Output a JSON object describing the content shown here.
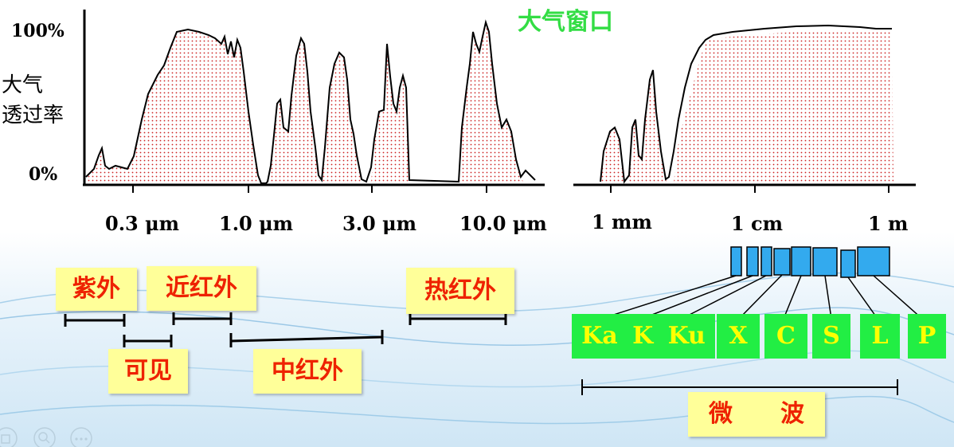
{
  "title": "大气窗口",
  "y_axis": {
    "label_line1": "大气",
    "label_line2": "透过率",
    "ticks": [
      "100%",
      "0%"
    ]
  },
  "x_axis_left": {
    "ticks": [
      "0.3 μm",
      "1.0 μm",
      "3.0 μm",
      "10.0 μm"
    ]
  },
  "x_axis_right": {
    "ticks": [
      "1 mm",
      "1 cm",
      "1 m"
    ]
  },
  "regions": {
    "uv": "紫外",
    "visible": "可见",
    "near_ir": "近红外",
    "mid_ir": "中红外",
    "thermal_ir": "热红外",
    "microwave": "微　　波"
  },
  "microwave_bands": [
    "Ka",
    "K",
    "Ku",
    "X",
    "C",
    "S",
    "L",
    "P"
  ],
  "colors": {
    "title": "#33dd44",
    "band_box": "#22ee44",
    "band_text": "#ffff00",
    "region_box": "#ffff99",
    "region_text": "#ee2200",
    "band_rect": "#33aaee",
    "curve_fill_dots": "#cc2222"
  }
}
